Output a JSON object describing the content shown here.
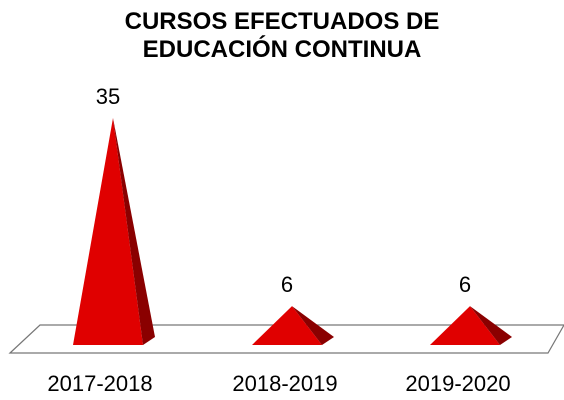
{
  "chart_data": {
    "type": "pyramid",
    "title": "CURSOS EFECTUADOS DE EDUCACIÓN CONTINUA",
    "categories": [
      "2017-2018",
      "2018-2019",
      "2019-2020"
    ],
    "values": [
      35,
      6,
      6
    ],
    "color": "#e00000"
  }
}
